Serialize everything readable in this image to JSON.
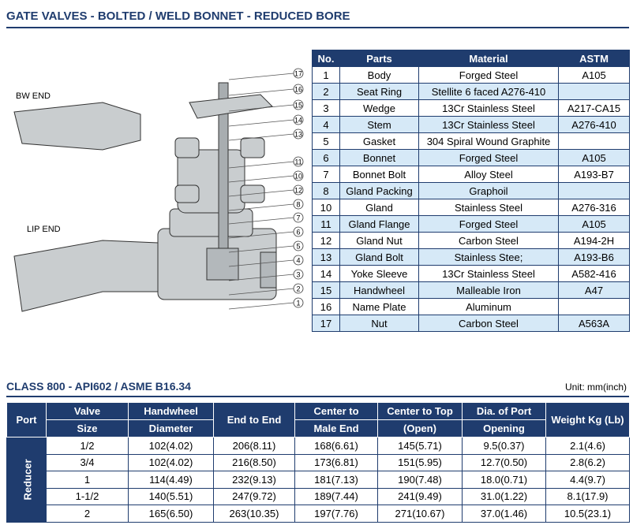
{
  "header": {
    "title": "GATE VALVES - BOLTED / WELD BONNET - REDUCED BORE"
  },
  "diagram": {
    "bw_end": "BW END",
    "lip_end": "LIP END",
    "callouts": [
      "17",
      "16",
      "15",
      "14",
      "13",
      "11",
      "10",
      "12",
      "8",
      "7",
      "6",
      "5",
      "4",
      "3",
      "2",
      "1"
    ]
  },
  "parts_table": {
    "columns": [
      "No.",
      "Parts",
      "Material",
      "ASTM"
    ],
    "rows": [
      [
        1,
        "Body",
        "Forged Steel",
        "A105"
      ],
      [
        2,
        "Seat Ring",
        "Stellite 6 faced A276-410",
        null
      ],
      [
        3,
        "Wedge",
        "13Cr Stainless Steel",
        "A217-CA15"
      ],
      [
        4,
        "Stem",
        "13Cr Stainless Steel",
        "A276-410"
      ],
      [
        5,
        "Gasket",
        "304 Spiral Wound Graphite",
        null
      ],
      [
        6,
        "Bonnet",
        "Forged Steel",
        "A105"
      ],
      [
        7,
        "Bonnet Bolt",
        "Alloy Steel",
        "A193-B7"
      ],
      [
        8,
        "Gland Packing",
        "Graphoil",
        null
      ],
      [
        10,
        "Gland",
        "Stainless Steel",
        "A276-316"
      ],
      [
        11,
        "Gland Flange",
        "Forged Steel",
        "A105"
      ],
      [
        12,
        "Gland Nut",
        "Carbon Steel",
        "A194-2H"
      ],
      [
        13,
        "Gland Bolt",
        "Stainless Stee;",
        "A193-B6"
      ],
      [
        14,
        "Yoke Sleeve",
        "13Cr Stainless Steel",
        "A582-416"
      ],
      [
        15,
        "Handwheel",
        "Malleable Iron",
        "A47"
      ],
      [
        16,
        "Name Plate",
        "Aluminum",
        null
      ],
      [
        17,
        "Nut",
        "Carbon Steel",
        "A563A"
      ]
    ]
  },
  "spec_table": {
    "title": "CLASS 800 - API602 / ASME B16.34",
    "unit": "Unit: mm(inch)",
    "columns": [
      [
        "Port"
      ],
      [
        "Valve",
        "Size"
      ],
      [
        "Handwheel",
        "Diameter"
      ],
      [
        "End to End"
      ],
      [
        "Center to",
        "Male End"
      ],
      [
        "Center to Top",
        "(Open)"
      ],
      [
        "Dia. of Port",
        "Opening"
      ],
      [
        "Weight Kg (Lb)"
      ]
    ],
    "row_group": "Reducer",
    "rows": [
      [
        "1/2",
        "102(4.02)",
        "206(8.11)",
        "168(6.61)",
        "145(5.71)",
        "9.5(0.37)",
        "2.1(4.6)"
      ],
      [
        "3/4",
        "102(4.02)",
        "216(8.50)",
        "173(6.81)",
        "151(5.95)",
        "12.7(0.50)",
        "2.8(6.2)"
      ],
      [
        "1",
        "114(4.49)",
        "232(9.13)",
        "181(7.13)",
        "190(7.48)",
        "18.0(0.71)",
        "4.4(9.7)"
      ],
      [
        "1-1/2",
        "140(5.51)",
        "247(9.72)",
        "189(7.44)",
        "241(9.49)",
        "31.0(1.22)",
        "8.1(17.9)"
      ],
      [
        "2",
        "165(6.50)",
        "263(10.35)",
        "197(7.76)",
        "271(10.67)",
        "37.0(1.46)",
        "10.5(23.1)"
      ]
    ]
  }
}
